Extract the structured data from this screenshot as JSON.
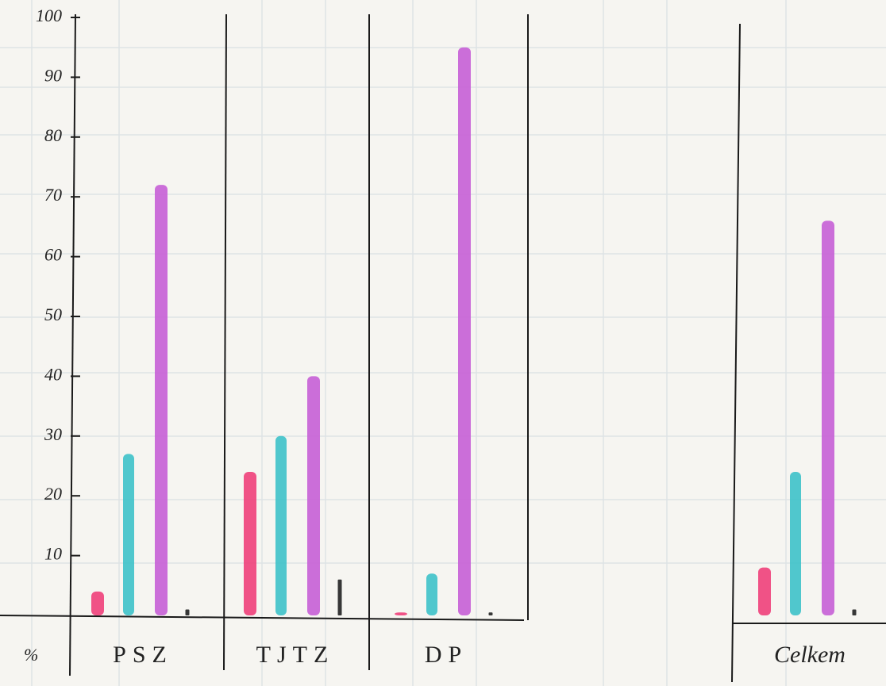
{
  "chart_data": {
    "type": "bar",
    "y_label": "%",
    "categories": [
      "PSZ",
      "TJTZ",
      "DP",
      "Celkem"
    ],
    "series": [
      {
        "color": "#f0407a",
        "values": [
          4,
          24,
          0.5,
          8
        ]
      },
      {
        "color": "#3ec2c9",
        "values": [
          27,
          30,
          7,
          24
        ]
      },
      {
        "color": "#c65fd6",
        "values": [
          72,
          40,
          95,
          66
        ]
      },
      {
        "color": "#222222",
        "values": [
          1,
          6,
          0.5,
          1
        ]
      }
    ],
    "ylim": [
      0,
      100
    ],
    "yticks": [
      10,
      20,
      30,
      40,
      50,
      60,
      70,
      80,
      90,
      100
    ]
  }
}
